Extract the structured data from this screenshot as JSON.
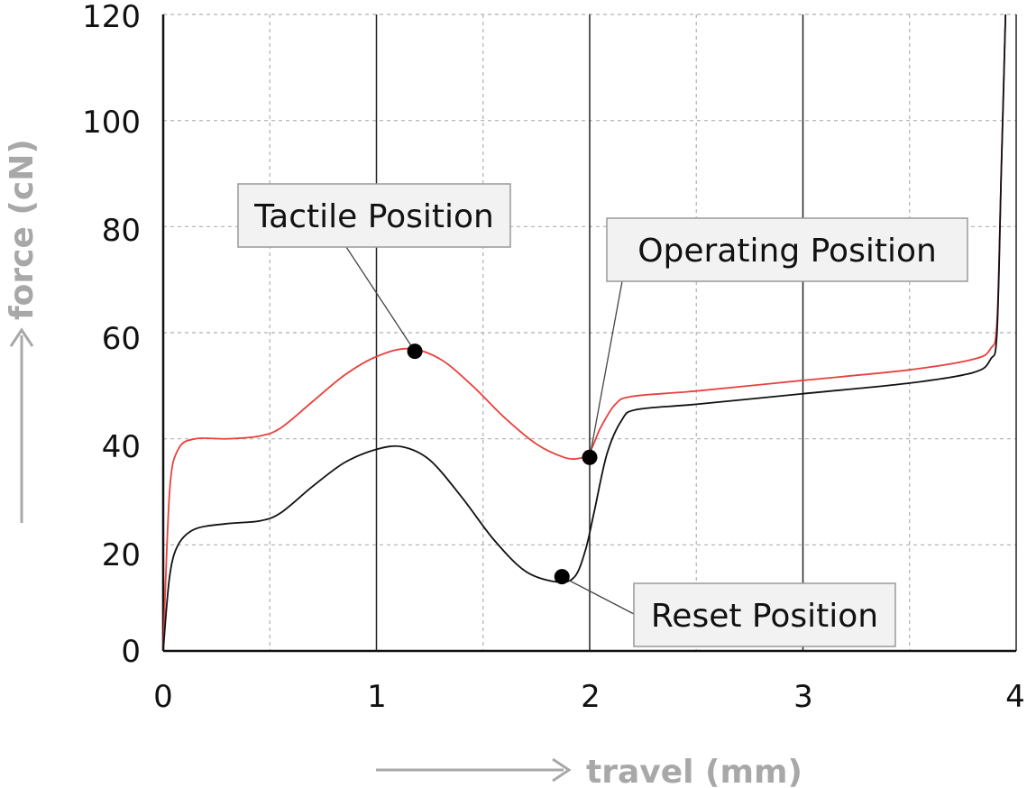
{
  "chart_data": {
    "type": "line",
    "xlabel": "travel (mm)",
    "ylabel": "force (cN)",
    "xlim": [
      0,
      4
    ],
    "ylim": [
      0,
      120
    ],
    "x_ticks": [
      "0",
      "1",
      "2",
      "3",
      "4"
    ],
    "y_ticks": [
      "0",
      "20",
      "40",
      "60",
      "80",
      "100",
      "120"
    ],
    "grid": true,
    "colors": {
      "press": "#e8413c",
      "release": "#111111",
      "grid_minor": "#b0b0b0",
      "grid_major": "#222222",
      "axis_title": "#a8a8a8"
    },
    "series": [
      {
        "key": "press",
        "x": [
          0,
          0.03,
          0.07,
          0.15,
          0.3,
          0.45,
          0.55,
          0.7,
          0.85,
          1.0,
          1.15,
          1.3,
          1.45,
          1.6,
          1.75,
          1.88,
          1.95,
          2.0,
          2.05,
          2.12,
          2.2,
          2.5,
          3.0,
          3.5,
          3.8,
          3.88,
          3.91,
          3.93,
          3.95
        ],
        "y": [
          0,
          30,
          38,
          40,
          40,
          40.5,
          42,
          47,
          52,
          55.5,
          57,
          55,
          50,
          44,
          39,
          36.5,
          36.3,
          37.5,
          42,
          46.5,
          48,
          49,
          51,
          53,
          55,
          57,
          62,
          90,
          120
        ]
      },
      {
        "key": "release",
        "x": [
          0,
          0.03,
          0.07,
          0.15,
          0.3,
          0.45,
          0.55,
          0.7,
          0.85,
          1.0,
          1.12,
          1.25,
          1.4,
          1.55,
          1.7,
          1.85,
          1.93,
          1.98,
          2.02,
          2.08,
          2.15,
          2.22,
          2.5,
          3.0,
          3.5,
          3.8,
          3.88,
          3.91,
          3.93,
          3.95
        ],
        "y": [
          0,
          14,
          20,
          23,
          24,
          24.5,
          26,
          31,
          35.5,
          38,
          38.5,
          36,
          29,
          21,
          15,
          13,
          14,
          19,
          26,
          37,
          43.5,
          45.5,
          46.5,
          48.5,
          50.5,
          52.5,
          55,
          60,
          90,
          120
        ]
      }
    ],
    "annotations": [
      {
        "label": "Tactile Position",
        "x": 1.18,
        "y": 56.5
      },
      {
        "label": "Operating Position",
        "x": 2.0,
        "y": 36.5
      },
      {
        "label": "Reset Position",
        "x": 1.87,
        "y": 14
      }
    ]
  }
}
